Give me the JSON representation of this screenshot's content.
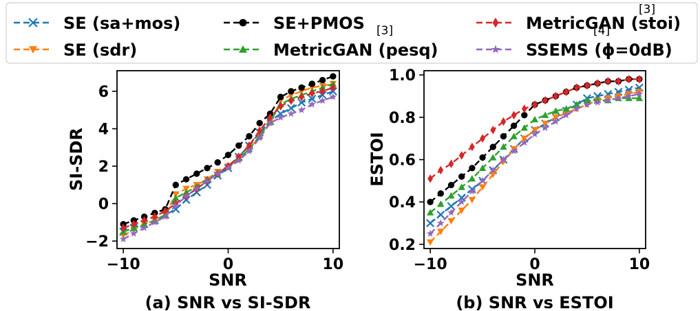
{
  "legend": {
    "entries": [
      {
        "label": "SE (sa+mos)",
        "color": "#1f77b4",
        "marker": "x"
      },
      {
        "label": "SE+PMOS",
        "color": "#000000",
        "marker": "circle"
      },
      {
        "label": "MetricGAN (stoi)",
        "color": "#d62728",
        "marker": "diamond",
        "ref": "[3]"
      },
      {
        "label": "SE (sdr)",
        "color": "#ff7f0e",
        "marker": "triangle-down"
      },
      {
        "label": "MetricGAN (pesq)",
        "color": "#2ca02c",
        "marker": "triangle-up",
        "ref": "[3]"
      },
      {
        "label": "SSEMS (ϕ=0dB)",
        "color": "#9467bd",
        "marker": "star",
        "ref": "[4]"
      }
    ]
  },
  "chart_data": [
    {
      "type": "line",
      "caption": "(a) SNR vs SI-SDR",
      "xlabel": "SNR",
      "ylabel": "SI-SDR",
      "xlim": [
        -10.6,
        10.6
      ],
      "ylim": [
        -2.4,
        7.1
      ],
      "xticks": [
        -10,
        0,
        10
      ],
      "yticks": [
        -2,
        0,
        2,
        4,
        6
      ],
      "grid": false,
      "x": [
        -10,
        -9,
        -8,
        -7,
        -6,
        -5,
        -4,
        -3,
        -2,
        -1,
        0,
        1,
        2,
        3,
        4,
        5,
        6,
        7,
        8,
        9,
        10
      ],
      "series": [
        {
          "name": "SE (sa+mos)",
          "values": [
            -1.5,
            -1.3,
            -1.1,
            -0.9,
            -0.6,
            -0.3,
            0.2,
            0.6,
            1.0,
            1.5,
            1.9,
            2.5,
            3.1,
            3.8,
            4.4,
            4.8,
            5.1,
            5.4,
            5.6,
            5.8,
            6.0
          ]
        },
        {
          "name": "SE (sdr)",
          "values": [
            -1.7,
            -1.4,
            -1.1,
            -0.9,
            -0.6,
            0.5,
            0.8,
            1.0,
            1.3,
            1.7,
            2.0,
            2.4,
            2.9,
            3.6,
            4.3,
            5.5,
            5.8,
            6.0,
            6.2,
            6.3,
            6.4
          ]
        },
        {
          "name": "SE+PMOS",
          "values": [
            -1.1,
            -0.9,
            -0.7,
            -0.5,
            -0.3,
            1.0,
            1.3,
            1.6,
            1.9,
            2.2,
            2.6,
            3.1,
            3.6,
            4.3,
            4.8,
            5.7,
            6.0,
            6.2,
            6.4,
            6.6,
            6.8
          ]
        },
        {
          "name": "MetricGAN (pesq)",
          "values": [
            -1.5,
            -1.3,
            -1.1,
            -0.9,
            -0.6,
            0.3,
            0.6,
            0.9,
            1.3,
            1.6,
            2.0,
            2.4,
            2.9,
            3.6,
            4.4,
            5.3,
            5.6,
            5.8,
            6.0,
            6.2,
            6.4
          ]
        },
        {
          "name": "MetricGAN (stoi)",
          "values": [
            -1.3,
            -1.1,
            -0.9,
            -0.7,
            -0.4,
            0.0,
            0.4,
            0.8,
            1.2,
            1.6,
            2.0,
            2.5,
            3.1,
            3.9,
            4.6,
            5.2,
            5.5,
            5.7,
            5.9,
            6.0,
            6.2
          ]
        },
        {
          "name": "SSEMS (ϕ=0dB)",
          "values": [
            -1.9,
            -1.6,
            -1.3,
            -1.0,
            -0.7,
            -0.1,
            0.4,
            0.8,
            1.2,
            1.6,
            1.9,
            2.3,
            2.8,
            3.5,
            4.3,
            4.6,
            4.8,
            5.0,
            5.3,
            5.5,
            5.7
          ]
        }
      ]
    },
    {
      "type": "line",
      "caption": "(b) SNR vs ESTOI",
      "xlabel": "SNR",
      "ylabel": "ESTOI",
      "xlim": [
        -10.6,
        10.6
      ],
      "ylim": [
        0.18,
        1.02
      ],
      "xticks": [
        -10,
        0,
        10
      ],
      "yticks": [
        0.2,
        0.4,
        0.6,
        0.8,
        1.0
      ],
      "ytick_labels": [
        "0.2",
        "0.4",
        "0.6",
        "0.8",
        "1.0"
      ],
      "grid": false,
      "x": [
        -10,
        -9,
        -8,
        -7,
        -6,
        -5,
        -4,
        -3,
        -2,
        -1,
        0,
        1,
        2,
        3,
        4,
        5,
        6,
        7,
        8,
        9,
        10
      ],
      "series": [
        {
          "name": "SE (sa+mos)",
          "values": [
            0.3,
            0.34,
            0.38,
            0.42,
            0.46,
            0.5,
            0.55,
            0.6,
            0.65,
            0.7,
            0.74,
            0.77,
            0.8,
            0.83,
            0.86,
            0.89,
            0.9,
            0.91,
            0.92,
            0.93,
            0.94
          ]
        },
        {
          "name": "SE (sdr)",
          "values": [
            0.21,
            0.26,
            0.31,
            0.36,
            0.41,
            0.47,
            0.53,
            0.59,
            0.65,
            0.7,
            0.74,
            0.77,
            0.8,
            0.82,
            0.84,
            0.86,
            0.88,
            0.89,
            0.9,
            0.91,
            0.92
          ]
        },
        {
          "name": "SE+PMOS",
          "values": [
            0.4,
            0.44,
            0.48,
            0.52,
            0.56,
            0.61,
            0.66,
            0.71,
            0.76,
            0.81,
            0.86,
            0.88,
            0.9,
            0.92,
            0.94,
            0.95,
            0.96,
            0.97,
            0.97,
            0.98,
            0.98
          ]
        },
        {
          "name": "MetricGAN (pesq)",
          "values": [
            0.35,
            0.39,
            0.43,
            0.47,
            0.51,
            0.56,
            0.61,
            0.66,
            0.71,
            0.75,
            0.79,
            0.81,
            0.83,
            0.84,
            0.86,
            0.88,
            0.88,
            0.88,
            0.89,
            0.89,
            0.89
          ]
        },
        {
          "name": "MetricGAN (stoi)",
          "values": [
            0.51,
            0.55,
            0.58,
            0.62,
            0.66,
            0.7,
            0.74,
            0.78,
            0.81,
            0.84,
            0.86,
            0.88,
            0.9,
            0.92,
            0.94,
            0.95,
            0.96,
            0.97,
            0.97,
            0.98,
            0.98
          ]
        },
        {
          "name": "SSEMS (ϕ=0dB)",
          "values": [
            0.25,
            0.3,
            0.35,
            0.4,
            0.45,
            0.5,
            0.55,
            0.6,
            0.64,
            0.68,
            0.72,
            0.75,
            0.78,
            0.81,
            0.84,
            0.86,
            0.87,
            0.88,
            0.89,
            0.9,
            0.91
          ]
        }
      ]
    }
  ]
}
